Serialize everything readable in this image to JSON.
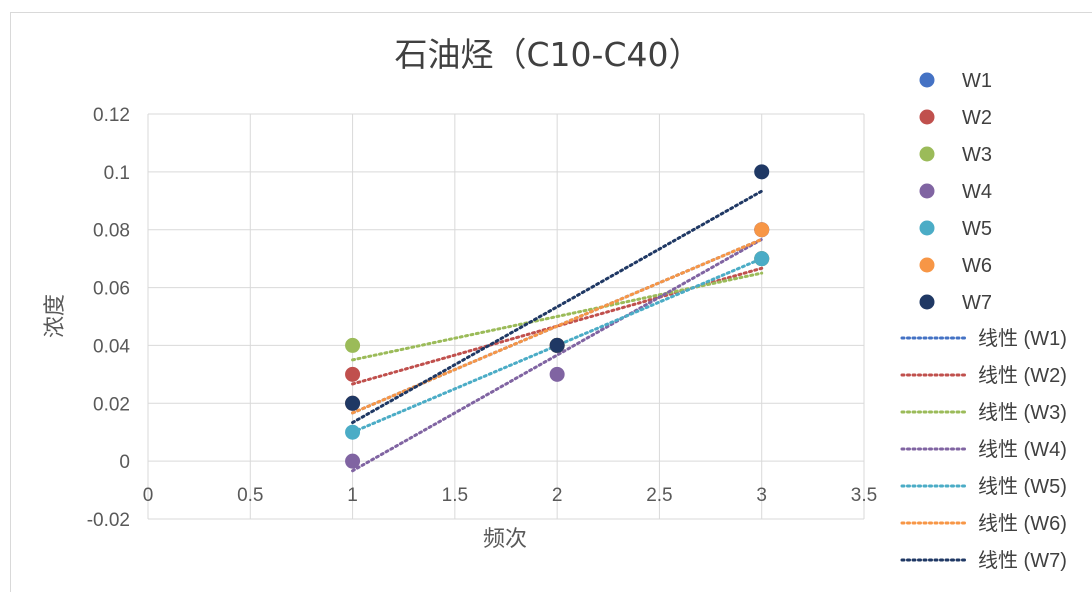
{
  "chart_data": {
    "type": "scatter",
    "title": "石油烃（C10-C40）",
    "xlabel": "频次",
    "ylabel": "浓度",
    "xlim": [
      0,
      3.5
    ],
    "ylim": [
      -0.02,
      0.12
    ],
    "x_ticks": [
      0,
      0.5,
      1,
      1.5,
      2,
      2.5,
      3,
      3.5
    ],
    "y_ticks": [
      -0.02,
      0,
      0.02,
      0.04,
      0.06,
      0.08,
      0.1,
      0.12
    ],
    "x_tick_labels": [
      "0",
      "0.5",
      "1",
      "1.5",
      "2",
      "2.5",
      "3",
      "3.5"
    ],
    "y_tick_labels": [
      "-0.02",
      "0",
      "0.02",
      "0.04",
      "0.06",
      "0.08",
      "0.1",
      "0.12"
    ],
    "grid": true,
    "legend_position": "right",
    "series": [
      {
        "name": "W1",
        "color": "#4472C4",
        "x": [
          1,
          2,
          3
        ],
        "y": [
          0.02,
          0.04,
          0.08
        ]
      },
      {
        "name": "W2",
        "color": "#C0504D",
        "x": [
          1,
          2,
          3
        ],
        "y": [
          0.03,
          0.04,
          0.07
        ]
      },
      {
        "name": "W3",
        "color": "#9BBB59",
        "x": [
          1,
          2,
          3
        ],
        "y": [
          0.04,
          0.04,
          0.07
        ]
      },
      {
        "name": "W4",
        "color": "#8064A2",
        "x": [
          1,
          2,
          3
        ],
        "y": [
          0.0,
          0.03,
          0.08
        ]
      },
      {
        "name": "W5",
        "color": "#4BACC6",
        "x": [
          1,
          2,
          3
        ],
        "y": [
          0.01,
          0.04,
          0.07
        ]
      },
      {
        "name": "W6",
        "color": "#F79646",
        "x": [
          1,
          2,
          3
        ],
        "y": [
          0.02,
          0.04,
          0.08
        ]
      },
      {
        "name": "W7",
        "color": "#1F3864",
        "x": [
          1,
          2,
          3
        ],
        "y": [
          0.02,
          0.04,
          0.1
        ]
      }
    ],
    "trendline_type": "linear",
    "trendline_legend": [
      "线性 (W1)",
      "线性 (W2)",
      "线性 (W3)",
      "线性 (W4)",
      "线性 (W5)",
      "线性 (W6)",
      "线性 (W7)"
    ]
  }
}
